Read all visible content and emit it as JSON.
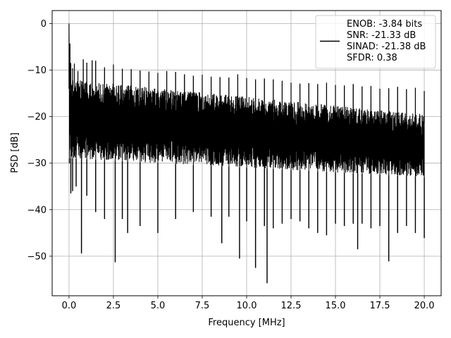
{
  "chart_data": {
    "type": "line",
    "xlabel": "Frequency [MHz]",
    "ylabel": "PSD [dB]",
    "xlim": [
      -0.95,
      20.95
    ],
    "ylim": [
      -58.5,
      2.8
    ],
    "xticks": [
      0.0,
      2.5,
      5.0,
      7.5,
      10.0,
      12.5,
      15.0,
      17.5,
      20.0
    ],
    "xtick_labels": [
      "0.0",
      "2.5",
      "5.0",
      "7.5",
      "10.0",
      "12.5",
      "15.0",
      "17.5",
      "20.0"
    ],
    "yticks": [
      0,
      -10,
      -20,
      -30,
      -40,
      -50
    ],
    "ytick_labels": [
      "0",
      "−10",
      "−20",
      "−30",
      "−40",
      "−50"
    ],
    "grid": true,
    "legend_position": "top-right",
    "legend_lines": [
      "ENOB: -3.84 bits",
      "SNR: -21.33 dB",
      "SINAD: -21.38 dB",
      "SFDR: 0.38"
    ],
    "series": [
      {
        "color": "#000000",
        "peaks": [
          [
            0.0,
            0.0
          ],
          [
            0.03,
            -4.6
          ],
          [
            0.05,
            -4.3
          ],
          [
            0.1,
            -8.5
          ],
          [
            0.2,
            -9.6
          ],
          [
            0.3,
            -8.6
          ],
          [
            0.5,
            -10.2
          ],
          [
            0.8,
            -7.7
          ],
          [
            1.0,
            -8.4
          ],
          [
            1.3,
            -7.9
          ],
          [
            1.5,
            -8.0
          ],
          [
            2.0,
            -9.4
          ],
          [
            2.5,
            -8.8
          ],
          [
            3.0,
            -9.7
          ],
          [
            3.5,
            -9.8
          ],
          [
            4.0,
            -10.1
          ],
          [
            4.5,
            -10.3
          ],
          [
            5.0,
            -10.6
          ],
          [
            5.5,
            -10.2
          ],
          [
            6.0,
            -10.4
          ],
          [
            6.5,
            -10.9
          ],
          [
            7.0,
            -11.2
          ],
          [
            7.5,
            -11.0
          ],
          [
            8.0,
            -11.4
          ],
          [
            8.5,
            -11.5
          ],
          [
            9.0,
            -11.6
          ],
          [
            9.5,
            -10.9
          ],
          [
            10.0,
            -11.7
          ],
          [
            10.5,
            -12.0
          ],
          [
            11.0,
            -11.8
          ],
          [
            11.5,
            -12.0
          ],
          [
            12.0,
            -12.3
          ],
          [
            12.5,
            -12.7
          ],
          [
            13.0,
            -12.9
          ],
          [
            13.5,
            -12.8
          ],
          [
            14.0,
            -13.0
          ],
          [
            14.5,
            -12.7
          ],
          [
            15.0,
            -13.2
          ],
          [
            15.5,
            -13.3
          ],
          [
            16.0,
            -13.0
          ],
          [
            16.5,
            -13.5
          ],
          [
            17.0,
            -13.4
          ],
          [
            17.5,
            -14.0
          ],
          [
            18.0,
            -13.9
          ],
          [
            18.5,
            -13.6
          ],
          [
            19.0,
            -14.1
          ],
          [
            19.5,
            -13.8
          ],
          [
            20.0,
            -14.5
          ]
        ],
        "troughs": [
          [
            0.02,
            -30.0
          ],
          [
            0.1,
            -36.5
          ],
          [
            0.2,
            -36.0
          ],
          [
            0.4,
            -35.0
          ],
          [
            0.7,
            -49.4
          ],
          [
            1.0,
            -37.0
          ],
          [
            1.5,
            -40.5
          ],
          [
            2.0,
            -42.0
          ],
          [
            2.6,
            -51.3
          ],
          [
            3.0,
            -42.0
          ],
          [
            3.3,
            -45.0
          ],
          [
            4.0,
            -43.5
          ],
          [
            5.0,
            -45.0
          ],
          [
            6.0,
            -42.0
          ],
          [
            7.0,
            -40.5
          ],
          [
            8.0,
            -41.5
          ],
          [
            8.6,
            -47.2
          ],
          [
            9.0,
            -41.5
          ],
          [
            9.6,
            -50.5
          ],
          [
            10.0,
            -42.5
          ],
          [
            10.5,
            -52.5
          ],
          [
            11.0,
            -43.5
          ],
          [
            11.15,
            -55.8
          ],
          [
            11.5,
            -44.0
          ],
          [
            12.0,
            -43.0
          ],
          [
            12.5,
            -42.0
          ],
          [
            13.0,
            -42.5
          ],
          [
            13.5,
            -44.0
          ],
          [
            14.0,
            -45.0
          ],
          [
            14.5,
            -45.5
          ],
          [
            15.0,
            -43.0
          ],
          [
            15.5,
            -43.5
          ],
          [
            16.0,
            -43.0
          ],
          [
            16.25,
            -48.5
          ],
          [
            16.5,
            -43.0
          ],
          [
            17.0,
            -44.0
          ],
          [
            17.5,
            -43.5
          ],
          [
            18.0,
            -51.1
          ],
          [
            18.5,
            -45.0
          ],
          [
            19.0,
            -43.5
          ],
          [
            19.5,
            -45.0
          ],
          [
            20.0,
            -46.1
          ]
        ],
        "band_upper": [
          [
            0.05,
            -12.0
          ],
          [
            20.0,
            -19.5
          ]
        ],
        "band_lower": [
          [
            0.05,
            -29.0
          ],
          [
            20.0,
            -33.0
          ]
        ]
      }
    ]
  }
}
